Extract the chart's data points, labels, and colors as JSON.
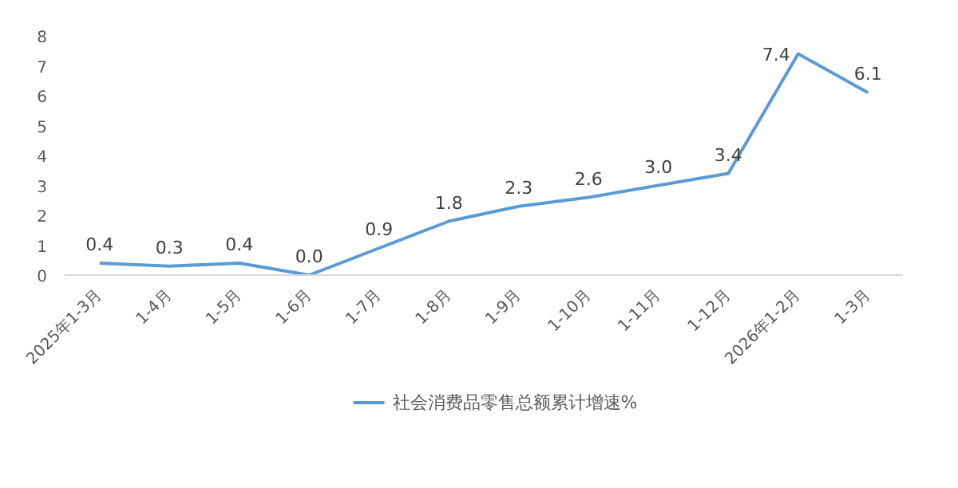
{
  "chart_data": {
    "type": "line",
    "categories": [
      "2025年1-3月",
      "1-4月",
      "1-5月",
      "1-6月",
      "1-7月",
      "1-8月",
      "1-9月",
      "1-10月",
      "1-11月",
      "1-12月",
      "2026年1-2月",
      "1-3月"
    ],
    "series": [
      {
        "name": "社会消费品零售总额累计增速%",
        "color": "#5b9bd5",
        "values": [
          0.4,
          0.3,
          0.4,
          0.0,
          0.9,
          1.8,
          2.3,
          2.6,
          3.0,
          3.4,
          7.4,
          6.1
        ],
        "value_labels": [
          "0.4",
          "0.3",
          "0.4",
          "0.0",
          "0.9",
          "1.8",
          "2.3",
          "2.6",
          "3.0",
          "3.4",
          "7.4",
          "6.1"
        ]
      }
    ],
    "ylim": [
      0,
      8
    ],
    "yticks": [
      0,
      1,
      2,
      3,
      4,
      5,
      6,
      7,
      8
    ],
    "grid": false,
    "legend": "bottom",
    "marker": "none",
    "line_style": "solid"
  }
}
